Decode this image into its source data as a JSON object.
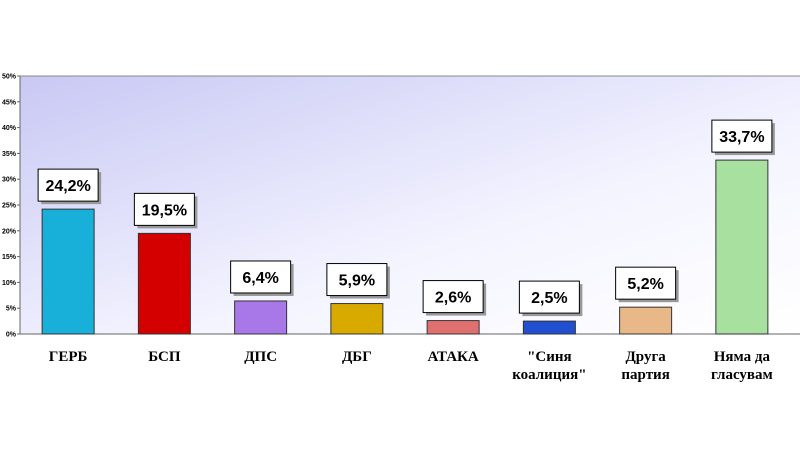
{
  "chart_data": {
    "type": "bar",
    "categories": [
      "ГЕРБ",
      "БСП",
      "ДПС",
      "ДБГ",
      "АТАКА",
      "\"Синя коалиция\"",
      "Друга партия",
      "Няма да гласувам"
    ],
    "values": [
      24.2,
      19.5,
      6.4,
      5.9,
      2.6,
      2.5,
      5.2,
      33.7
    ],
    "value_labels": [
      "24,2%",
      "19,5%",
      "6,4%",
      "5,9%",
      "2,6%",
      "2,5%",
      "5,2%",
      "33,7%"
    ],
    "colors": [
      "#18b0d8",
      "#d40000",
      "#a878e8",
      "#d8aa00",
      "#e07070",
      "#2050d0",
      "#e8b888",
      "#a8e0a0"
    ],
    "ylim": [
      0,
      50
    ],
    "yticks": [
      {
        "value": 0,
        "label": "0%"
      },
      {
        "value": 5,
        "label": "5%"
      },
      {
        "value": 10,
        "label": "10%"
      },
      {
        "value": 15,
        "label": "15%"
      },
      {
        "value": 20,
        "label": "20%"
      },
      {
        "value": 25,
        "label": "25%"
      },
      {
        "value": 30,
        "label": "30%"
      },
      {
        "value": 35,
        "label": "35%"
      },
      {
        "value": 40,
        "label": "40%"
      },
      {
        "value": 45,
        "label": "45%"
      },
      {
        "value": 50,
        "label": "50%"
      }
    ]
  }
}
